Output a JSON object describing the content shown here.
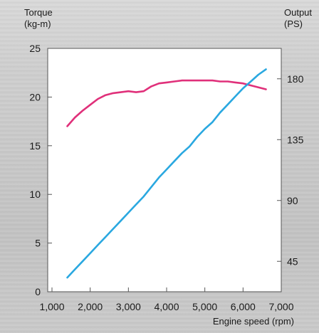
{
  "chart_data": {
    "type": "line",
    "xlabel": "Engine speed (rpm)",
    "ylabel_left": [
      "Torque",
      "(kg-m)"
    ],
    "ylabel_right": [
      "Output",
      "(PS)"
    ],
    "x_ticks": [
      "1,000",
      "2,000",
      "3,000",
      "4,000",
      "5,000",
      "6,000",
      "7,000"
    ],
    "x_tick_values": [
      1000,
      2000,
      3000,
      4000,
      5000,
      6000,
      7000
    ],
    "y_left_ticks": [
      "0",
      "5",
      "10",
      "15",
      "20",
      "25"
    ],
    "y_left_tick_values": [
      0,
      5,
      10,
      15,
      20,
      25
    ],
    "y_right_ticks": [
      "45",
      "90",
      "135",
      "180"
    ],
    "y_right_tick_values": [
      45,
      90,
      135,
      180
    ],
    "xlim": [
      1000,
      7000
    ],
    "ylim_left": [
      0,
      25
    ],
    "ylim_right": [
      22.5,
      202.5
    ],
    "grid": false,
    "series": [
      {
        "axis": "left",
        "color": "#e0307a",
        "x": [
          1400,
          1600,
          1800,
          2000,
          2200,
          2400,
          2600,
          2800,
          3000,
          3200,
          3400,
          3600,
          3800,
          4000,
          4200,
          4400,
          4600,
          4800,
          5000,
          5200,
          5400,
          5600,
          5800,
          6000,
          6200,
          6400,
          6600
        ],
        "values": [
          17.0,
          17.9,
          18.6,
          19.2,
          19.8,
          20.2,
          20.4,
          20.5,
          20.6,
          20.5,
          20.6,
          21.1,
          21.4,
          21.5,
          21.6,
          21.7,
          21.7,
          21.7,
          21.7,
          21.7,
          21.6,
          21.6,
          21.5,
          21.4,
          21.2,
          21.0,
          20.8
        ]
      },
      {
        "axis": "right",
        "color": "#2aa8e0",
        "x": [
          1400,
          1600,
          1800,
          2000,
          2200,
          2400,
          2600,
          2800,
          3000,
          3200,
          3400,
          3600,
          3800,
          4000,
          4200,
          4400,
          4600,
          4800,
          5000,
          5200,
          5400,
          5600,
          5800,
          6000,
          6200,
          6400,
          6600
        ],
        "values": [
          33,
          39,
          45,
          51,
          57,
          63,
          69,
          75,
          81,
          87,
          93,
          100,
          107,
          113,
          119,
          125,
          130,
          137,
          143,
          148,
          155,
          161,
          167,
          173,
          178,
          183,
          187
        ]
      }
    ]
  }
}
